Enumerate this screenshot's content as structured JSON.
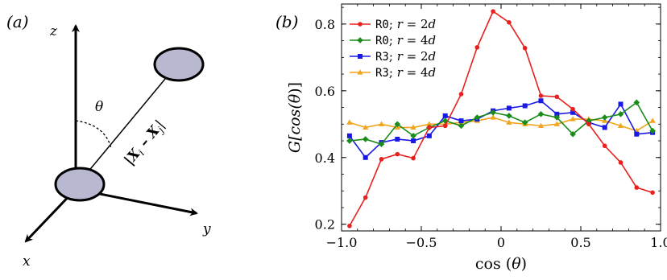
{
  "panel_a": {
    "label": "(a)",
    "axis_x": "x",
    "axis_y": "y",
    "axis_z": "z",
    "angle": "θ",
    "vector": "|X",
    "vector_sub_i": "i",
    "vector_minus": " – X",
    "vector_sub_j": "j",
    "vector_end": "|",
    "particle_color": "#b8b8d0"
  },
  "panel_b": {
    "label": "(b)"
  },
  "chart_data": {
    "type": "line",
    "xlabel_prefix": "cos (",
    "xlabel_var": "θ",
    "xlabel_suffix": ")",
    "ylabel_prefix": "G[cos(",
    "ylabel_var": "θ",
    "ylabel_suffix": ")]",
    "xlim": [
      -1.0,
      1.0
    ],
    "ylim": [
      0.18,
      0.86
    ],
    "xticks": [
      -1.0,
      -0.5,
      0,
      0.5,
      1.0
    ],
    "xtick_labels": [
      "−1.0",
      "−0.5",
      "0",
      "0.5",
      "1.0"
    ],
    "yticks": [
      0.2,
      0.4,
      0.6,
      0.8
    ],
    "ytick_labels": [
      "0.2",
      "0.4",
      "0.6",
      "0.8"
    ],
    "grid": false,
    "legend_position": "top-left",
    "x": [
      -0.95,
      -0.85,
      -0.75,
      -0.65,
      -0.55,
      -0.45,
      -0.35,
      -0.25,
      -0.15,
      -0.05,
      0.05,
      0.15,
      0.25,
      0.35,
      0.45,
      0.55,
      0.65,
      0.75,
      0.85,
      0.95
    ],
    "series": [
      {
        "name_code": "R0",
        "name_sep": "; ",
        "name_var": "r",
        "name_rest": " = 2",
        "name_d": "d",
        "color": "#e8201e",
        "marker": "circle",
        "values": [
          0.195,
          0.28,
          0.395,
          0.41,
          0.398,
          0.49,
          0.495,
          0.59,
          0.73,
          0.838,
          0.805,
          0.728,
          0.585,
          0.582,
          0.545,
          0.5,
          0.435,
          0.385,
          0.31,
          0.295
        ]
      },
      {
        "name_code": "R0",
        "name_sep": "; ",
        "name_var": "r",
        "name_rest": " = 4",
        "name_d": "d",
        "color": "#1a8c1a",
        "marker": "diamond",
        "values": [
          0.45,
          0.455,
          0.44,
          0.5,
          0.465,
          0.49,
          0.51,
          0.495,
          0.52,
          0.535,
          0.525,
          0.505,
          0.53,
          0.52,
          0.47,
          0.51,
          0.52,
          0.53,
          0.565,
          0.48
        ]
      },
      {
        "name_code": "R3",
        "name_sep": "; ",
        "name_var": "r",
        "name_rest": " = 2",
        "name_d": "d",
        "color": "#1919e6",
        "marker": "square",
        "values": [
          0.465,
          0.4,
          0.445,
          0.455,
          0.45,
          0.465,
          0.525,
          0.51,
          0.515,
          0.54,
          0.548,
          0.555,
          0.57,
          0.53,
          0.535,
          0.505,
          0.49,
          0.56,
          0.47,
          0.475
        ]
      },
      {
        "name_code": "R3",
        "name_sep": "; ",
        "name_var": "r",
        "name_rest": " = 4",
        "name_d": "d",
        "color": "#f2a41c",
        "marker": "triangle",
        "values": [
          0.505,
          0.49,
          0.5,
          0.49,
          0.49,
          0.5,
          0.5,
          0.505,
          0.51,
          0.52,
          0.505,
          0.5,
          0.495,
          0.5,
          0.515,
          0.515,
          0.51,
          0.495,
          0.48,
          0.51
        ]
      }
    ]
  }
}
